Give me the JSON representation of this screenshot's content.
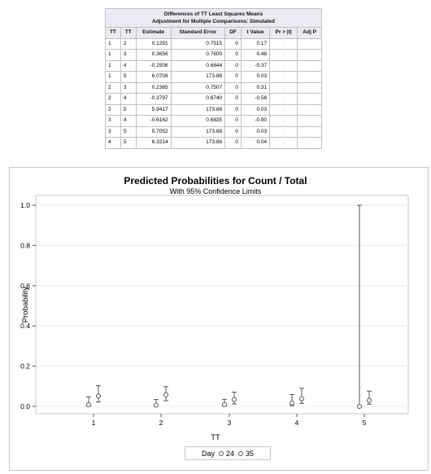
{
  "table": {
    "title": "Differences of TT Least Squares Means",
    "subtitle": "Adjustment for Multiple Comparisons: Simulated",
    "columns": [
      "TT",
      "TT",
      "Estimate",
      "Standard Error",
      "DF",
      "t Value",
      "Pr > |t|",
      "Adj P"
    ],
    "rows": [
      [
        "1",
        "2",
        "0.1291",
        "0.7515",
        "0",
        "0.17",
        ".",
        "."
      ],
      [
        "1",
        "3",
        "0.3656",
        "0.7600",
        "0",
        "0.48",
        ".",
        "."
      ],
      [
        "1",
        "4",
        "-0.2506",
        "0.6844",
        "0",
        "-0.37",
        ".",
        "."
      ],
      [
        "1",
        "5",
        "6.0708",
        "173.88",
        "0",
        "0.03",
        ".",
        "."
      ],
      [
        "2",
        "3",
        "0.2365",
        "0.7507",
        "0",
        "0.31",
        ".",
        "."
      ],
      [
        "2",
        "4",
        "-0.3797",
        "0.6740",
        "0",
        "-0.56",
        ".",
        "."
      ],
      [
        "2",
        "5",
        "5.9417",
        "173.88",
        "0",
        "0.03",
        ".",
        "."
      ],
      [
        "3",
        "4",
        "-0.6162",
        "0.6835",
        "0",
        "-0.90",
        ".",
        "."
      ],
      [
        "3",
        "5",
        "5.7052",
        "173.88",
        "0",
        "0.03",
        ".",
        "."
      ],
      [
        "4",
        "5",
        "6.3214",
        "173.88",
        "0",
        "0.04",
        ".",
        "."
      ]
    ]
  },
  "chart_data": {
    "type": "scatter",
    "title": "Predicted Probabilities for Count / Total",
    "subtitle": "With 95% Confidence Limits",
    "xlabel": "TT",
    "ylabel": "Probability",
    "categories": [
      "1",
      "2",
      "3",
      "4",
      "5"
    ],
    "ylim": [
      0,
      1.0
    ],
    "yticks": [
      0.0,
      0.2,
      0.4,
      0.6,
      0.8,
      1.0
    ],
    "ytick_labels": [
      "0.0",
      "0.2",
      "0.4",
      "0.6",
      "0.8",
      "1.0"
    ],
    "grid": true,
    "legend": {
      "title": "Day",
      "position": "bottom",
      "entries": [
        "24",
        "35"
      ]
    },
    "series": [
      {
        "name": "24",
        "color": "#555555",
        "values": [
          0.008,
          0.006,
          0.009,
          0.017,
          0.0
        ],
        "lower": [
          0.001,
          0.001,
          0.002,
          0.004,
          0.0
        ],
        "upper": [
          0.048,
          0.034,
          0.035,
          0.059,
          1.0
        ]
      },
      {
        "name": "35",
        "color": "#555555",
        "values": [
          0.052,
          0.058,
          0.034,
          0.038,
          0.03
        ],
        "lower": [
          0.022,
          0.028,
          0.012,
          0.015,
          0.011
        ],
        "upper": [
          0.103,
          0.098,
          0.071,
          0.09,
          0.076
        ]
      }
    ]
  }
}
